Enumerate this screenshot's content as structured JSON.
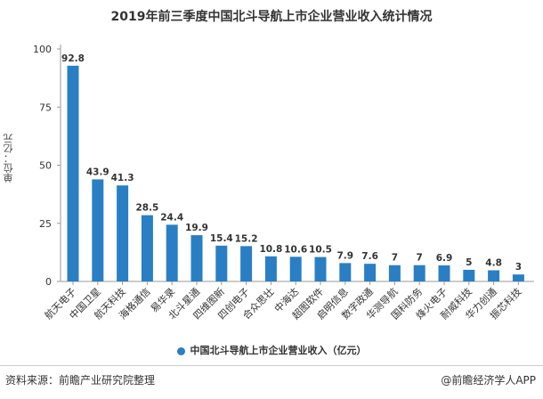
{
  "chart_data": {
    "type": "bar",
    "title": "2019年前三季度中国北斗导航上市企业营业收入统计情况",
    "ylabel": "单位：亿元",
    "xlabel": "",
    "ylim": [
      0,
      100
    ],
    "yticks": [
      0,
      25,
      50,
      75,
      100
    ],
    "categories": [
      "航天电子",
      "中国卫星",
      "航天科技",
      "海格通信",
      "易华录",
      "北斗星通",
      "四维图新",
      "四创电子",
      "合众思壮",
      "中海达",
      "超图软件",
      "启明信息",
      "数字政通",
      "华测导航",
      "国科防务",
      "烽火电子",
      "耐威科技",
      "华力创通",
      "振芯科技"
    ],
    "series": [
      {
        "name": "中国北斗导航上市企业营业收入（亿元）",
        "values": [
          92.8,
          43.9,
          41.3,
          28.5,
          24.4,
          19.9,
          15.4,
          15.2,
          10.8,
          10.6,
          10.5,
          7.9,
          7.6,
          7,
          7,
          6.9,
          5,
          4.8,
          3
        ]
      }
    ],
    "legend": "bottom",
    "grid": false,
    "color": "#2a7fc4"
  },
  "footer": {
    "source": "资料来源：前瞻产业研究院整理",
    "brand": "@前瞻经济学人APP"
  }
}
